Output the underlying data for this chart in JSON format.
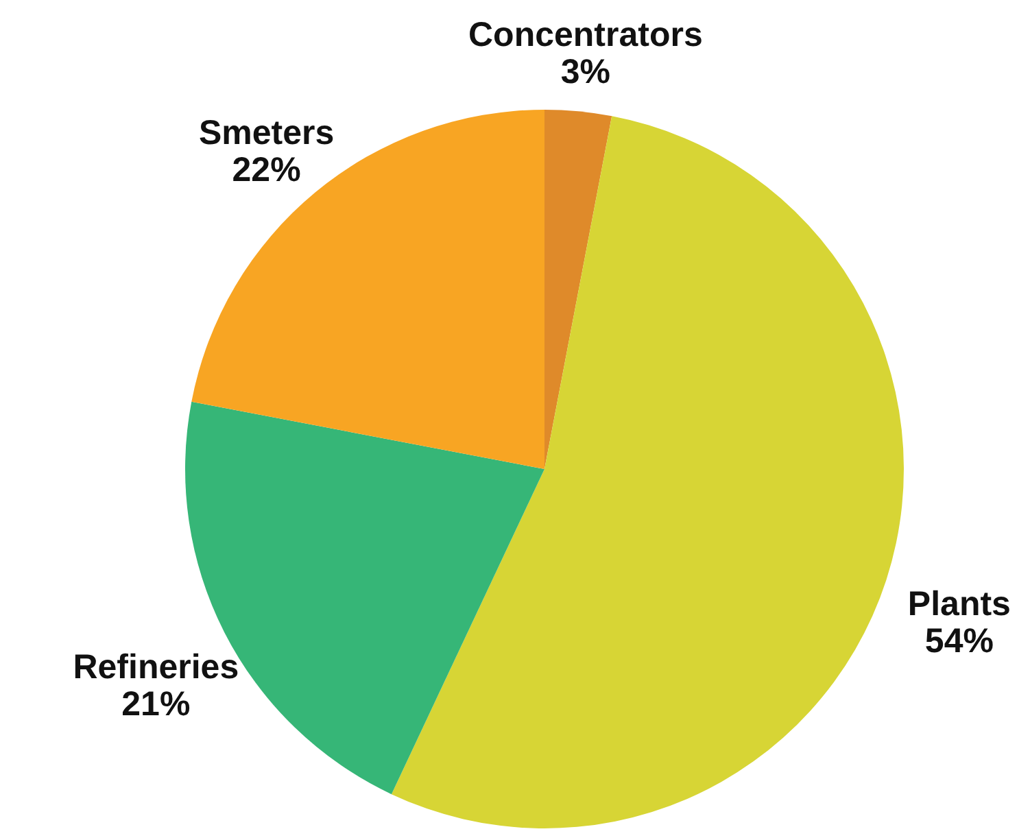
{
  "chart_data": {
    "type": "pie",
    "categories": [
      "Concentrators",
      "Plants",
      "Refineries",
      "Smeters"
    ],
    "values": [
      3,
      54,
      21,
      22
    ],
    "colors": [
      "#df8a2a",
      "#d7d535",
      "#36b677",
      "#f8a523"
    ],
    "value_labels": [
      "3%",
      "54%",
      "21%",
      "22%"
    ]
  }
}
